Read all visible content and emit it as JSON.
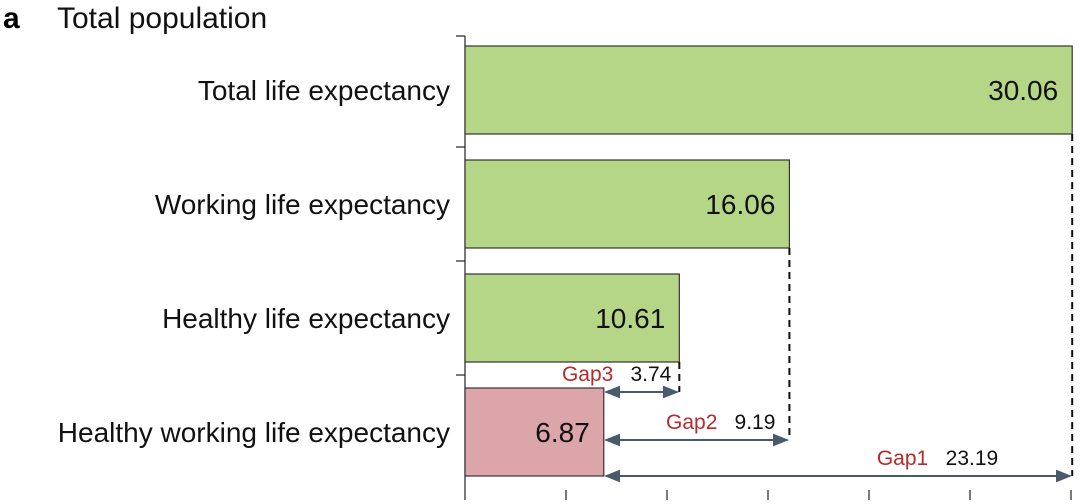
{
  "panel": {
    "letter": "a",
    "title": "Total population"
  },
  "chart_data": {
    "type": "bar",
    "orientation": "horizontal",
    "categories": [
      "Total life expectancy",
      "Working life expectancy",
      "Healthy life expectancy",
      "Healthy working life expectancy"
    ],
    "values": [
      30.06,
      16.06,
      10.61,
      6.87
    ],
    "value_labels": [
      "30.06",
      "16.06",
      "10.61",
      "6.87"
    ],
    "bar_colors": [
      "#b5d587",
      "#b5d587",
      "#b5d587",
      "#dba5a9"
    ],
    "xlim": [
      0,
      30
    ],
    "x_ticks": [
      0,
      5,
      10,
      15,
      20,
      25,
      30
    ],
    "gaps": [
      {
        "name": "Gap3",
        "value": "3.74",
        "from": 6.87,
        "to": 10.61,
        "row": 3
      },
      {
        "name": "Gap2",
        "value": "9.19",
        "from": 6.87,
        "to": 16.06,
        "row": 3
      },
      {
        "name": "Gap1",
        "value": "23.19",
        "from": 6.87,
        "to": 30.06,
        "row": 3
      }
    ],
    "colors": {
      "gap_label": "#b52a2a",
      "arrow": "#4a5a6e",
      "axis": "#222222"
    }
  }
}
